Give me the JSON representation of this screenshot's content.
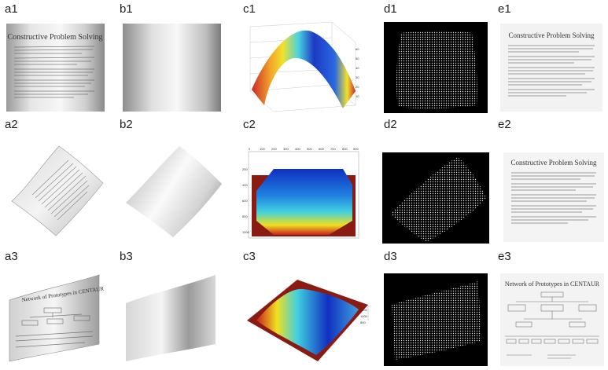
{
  "labels": {
    "a1": "a1",
    "b1": "b1",
    "c1": "c1",
    "d1": "d1",
    "e1": "e1",
    "a2": "a2",
    "b2": "b2",
    "c2": "c2",
    "d2": "d2",
    "e2": "e2",
    "a3": "a3",
    "b3": "b3",
    "c3": "c3",
    "d3": "d3",
    "e3": "e3"
  },
  "documents": {
    "title1": "Constructive Problem Solving",
    "title3": "Network of Prototypes in CENTAUR"
  },
  "ticks": {
    "c1_right": [
      "60",
      "50",
      "40",
      "30",
      "20",
      "10"
    ],
    "c2_top": [
      "0",
      "100",
      "200",
      "300",
      "400",
      "500",
      "600",
      "700",
      "800",
      "900"
    ],
    "c2_left": [
      "200",
      "400",
      "600",
      "800",
      "1000"
    ],
    "c3_right": [
      "1200",
      "1000",
      "800"
    ]
  },
  "colors": {
    "surface_hot": "#c81e1e",
    "surface_mid": "#f0e020",
    "surface_cool": "#10a0e0",
    "surface_deep": "#1030c0",
    "base_red": "#8a1a12"
  }
}
